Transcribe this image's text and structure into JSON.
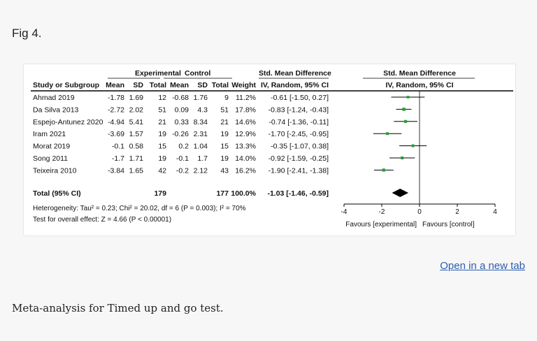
{
  "figure_label": "Fig 4.",
  "open_link": "Open in a new tab",
  "caption": "Meta-analysis for Timed up and go test.",
  "colors": {
    "point": "#2a9d3a",
    "link": "#2a5db0",
    "line": "#000000"
  },
  "chart_data": {
    "type": "forest",
    "groups": {
      "experimental": "Experimental",
      "control": "Control"
    },
    "left_effect_header": "Std. Mean Difference",
    "plot_header": "Std. Mean Difference",
    "column_headers": {
      "study": "Study or Subgroup",
      "mean": "Mean",
      "sd": "SD",
      "total": "Total",
      "weight": "Weight",
      "ci": "IV, Random, 95% CI"
    },
    "studies": [
      {
        "name": "Ahmad 2019",
        "exp_mean": "-1.78",
        "exp_sd": "1.69",
        "exp_total": "12",
        "ctrl_mean": "-0.68",
        "ctrl_sd": "1.76",
        "ctrl_total": "9",
        "weight": "11.2%",
        "ci_text": "-0.61 [-1.50, 0.27]",
        "smd": -0.61,
        "lo": -1.5,
        "hi": 0.27
      },
      {
        "name": "Da Silva 2013",
        "exp_mean": "-2.72",
        "exp_sd": "2.02",
        "exp_total": "51",
        "ctrl_mean": "0.09",
        "ctrl_sd": "4.3",
        "ctrl_total": "51",
        "weight": "17.8%",
        "ci_text": "-0.83 [-1.24, -0.43]",
        "smd": -0.83,
        "lo": -1.24,
        "hi": -0.43
      },
      {
        "name": "Espejo-Antunez 2020",
        "exp_mean": "-4.94",
        "exp_sd": "5.41",
        "exp_total": "21",
        "ctrl_mean": "0.33",
        "ctrl_sd": "8.34",
        "ctrl_total": "21",
        "weight": "14.6%",
        "ci_text": "-0.74 [-1.36, -0.11]",
        "smd": -0.74,
        "lo": -1.36,
        "hi": -0.11
      },
      {
        "name": "Iram 2021",
        "exp_mean": "-3.69",
        "exp_sd": "1.57",
        "exp_total": "19",
        "ctrl_mean": "-0.26",
        "ctrl_sd": "2.31",
        "ctrl_total": "19",
        "weight": "12.9%",
        "ci_text": "-1.70 [-2.45, -0.95]",
        "smd": -1.7,
        "lo": -2.45,
        "hi": -0.95
      },
      {
        "name": "Morat 2019",
        "exp_mean": "-0.1",
        "exp_sd": "0.58",
        "exp_total": "15",
        "ctrl_mean": "0.2",
        "ctrl_sd": "1.04",
        "ctrl_total": "15",
        "weight": "13.3%",
        "ci_text": "-0.35 [-1.07, 0.38]",
        "smd": -0.35,
        "lo": -1.07,
        "hi": 0.38
      },
      {
        "name": "Song 2011",
        "exp_mean": "-1.7",
        "exp_sd": "1.71",
        "exp_total": "19",
        "ctrl_mean": "-0.1",
        "ctrl_sd": "1.7",
        "ctrl_total": "19",
        "weight": "14.0%",
        "ci_text": "-0.92 [-1.59, -0.25]",
        "smd": -0.92,
        "lo": -1.59,
        "hi": -0.25
      },
      {
        "name": "Teixeira 2010",
        "exp_mean": "-3.84",
        "exp_sd": "1.65",
        "exp_total": "42",
        "ctrl_mean": "-0.2",
        "ctrl_sd": "2.12",
        "ctrl_total": "43",
        "weight": "16.2%",
        "ci_text": "-1.90 [-2.41, -1.38]",
        "smd": -1.9,
        "lo": -2.41,
        "hi": -1.38
      }
    ],
    "total": {
      "label": "Total (95% CI)",
      "exp_total": "179",
      "ctrl_total": "177",
      "weight": "100.0%",
      "ci_text": "-1.03 [-1.46, -0.59]",
      "smd": -1.03,
      "lo": -1.46,
      "hi": -0.59
    },
    "heterogeneity": "Heterogeneity: Tau² = 0.23; Chi² = 20.02, df = 6 (P = 0.003); I² = 70%",
    "overall_effect": "Test for overall effect: Z = 4.66 (P < 0.00001)",
    "x_ticks": [
      -4,
      -2,
      0,
      2,
      4
    ],
    "x_tick_labels": [
      "-4",
      "-2",
      "0",
      "2",
      "4"
    ],
    "xlim": [
      -4,
      4
    ],
    "favours_left": "Favours [experimental]",
    "favours_right": "Favours [control]"
  }
}
